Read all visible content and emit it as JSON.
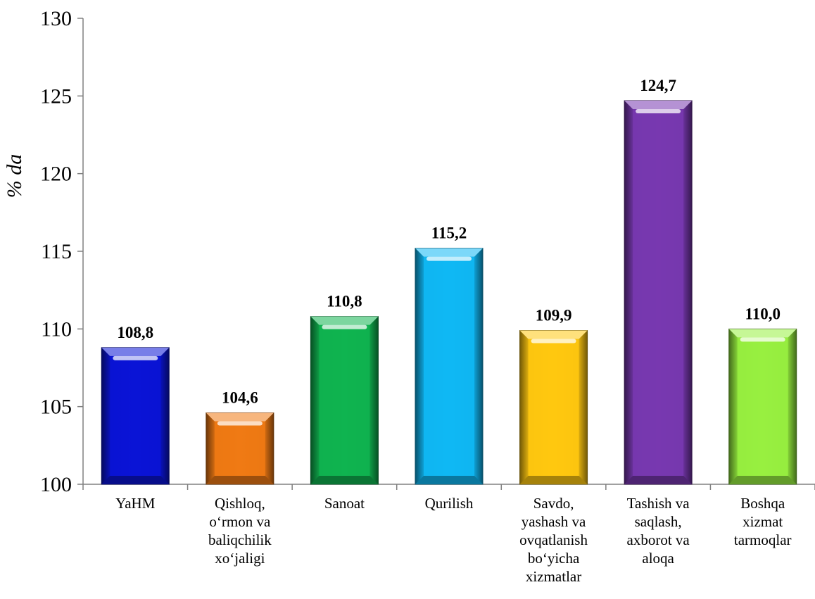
{
  "chart_data": {
    "type": "bar",
    "title": "",
    "xlabel": "",
    "ylabel": "% da",
    "ylim": [
      100,
      130
    ],
    "yticks": [
      100,
      105,
      110,
      115,
      120,
      125,
      130
    ],
    "ytick_labels": [
      "100",
      "105",
      "110",
      "115",
      "120",
      "125",
      "130"
    ],
    "grid": false,
    "legend": "none",
    "categories": [
      [
        "YaHM"
      ],
      [
        "Qishloq,",
        "o‘rmon va",
        "baliqchilik",
        "xo‘jaligi"
      ],
      [
        "Sanoat"
      ],
      [
        "Qurilish"
      ],
      [
        "Savdo,",
        "yashash va",
        "ovqatlanish",
        "bo‘yicha",
        "xizmatlar"
      ],
      [
        "Tashish va",
        "saqlash,",
        "axborot va",
        "aloqa"
      ],
      [
        "Boshqa",
        "xizmat",
        "tarmoqlar"
      ]
    ],
    "values": [
      108.8,
      104.6,
      110.8,
      115.2,
      109.9,
      124.7,
      110.0
    ],
    "data_labels": [
      "108,8",
      "104,6",
      "110,8",
      "115,2",
      "109,9",
      "124,7",
      "110,0"
    ],
    "colors": [
      "#0a14d6",
      "#f07a14",
      "#10b450",
      "#10b8f4",
      "#ffc810",
      "#7838b0",
      "#98f040"
    ]
  }
}
